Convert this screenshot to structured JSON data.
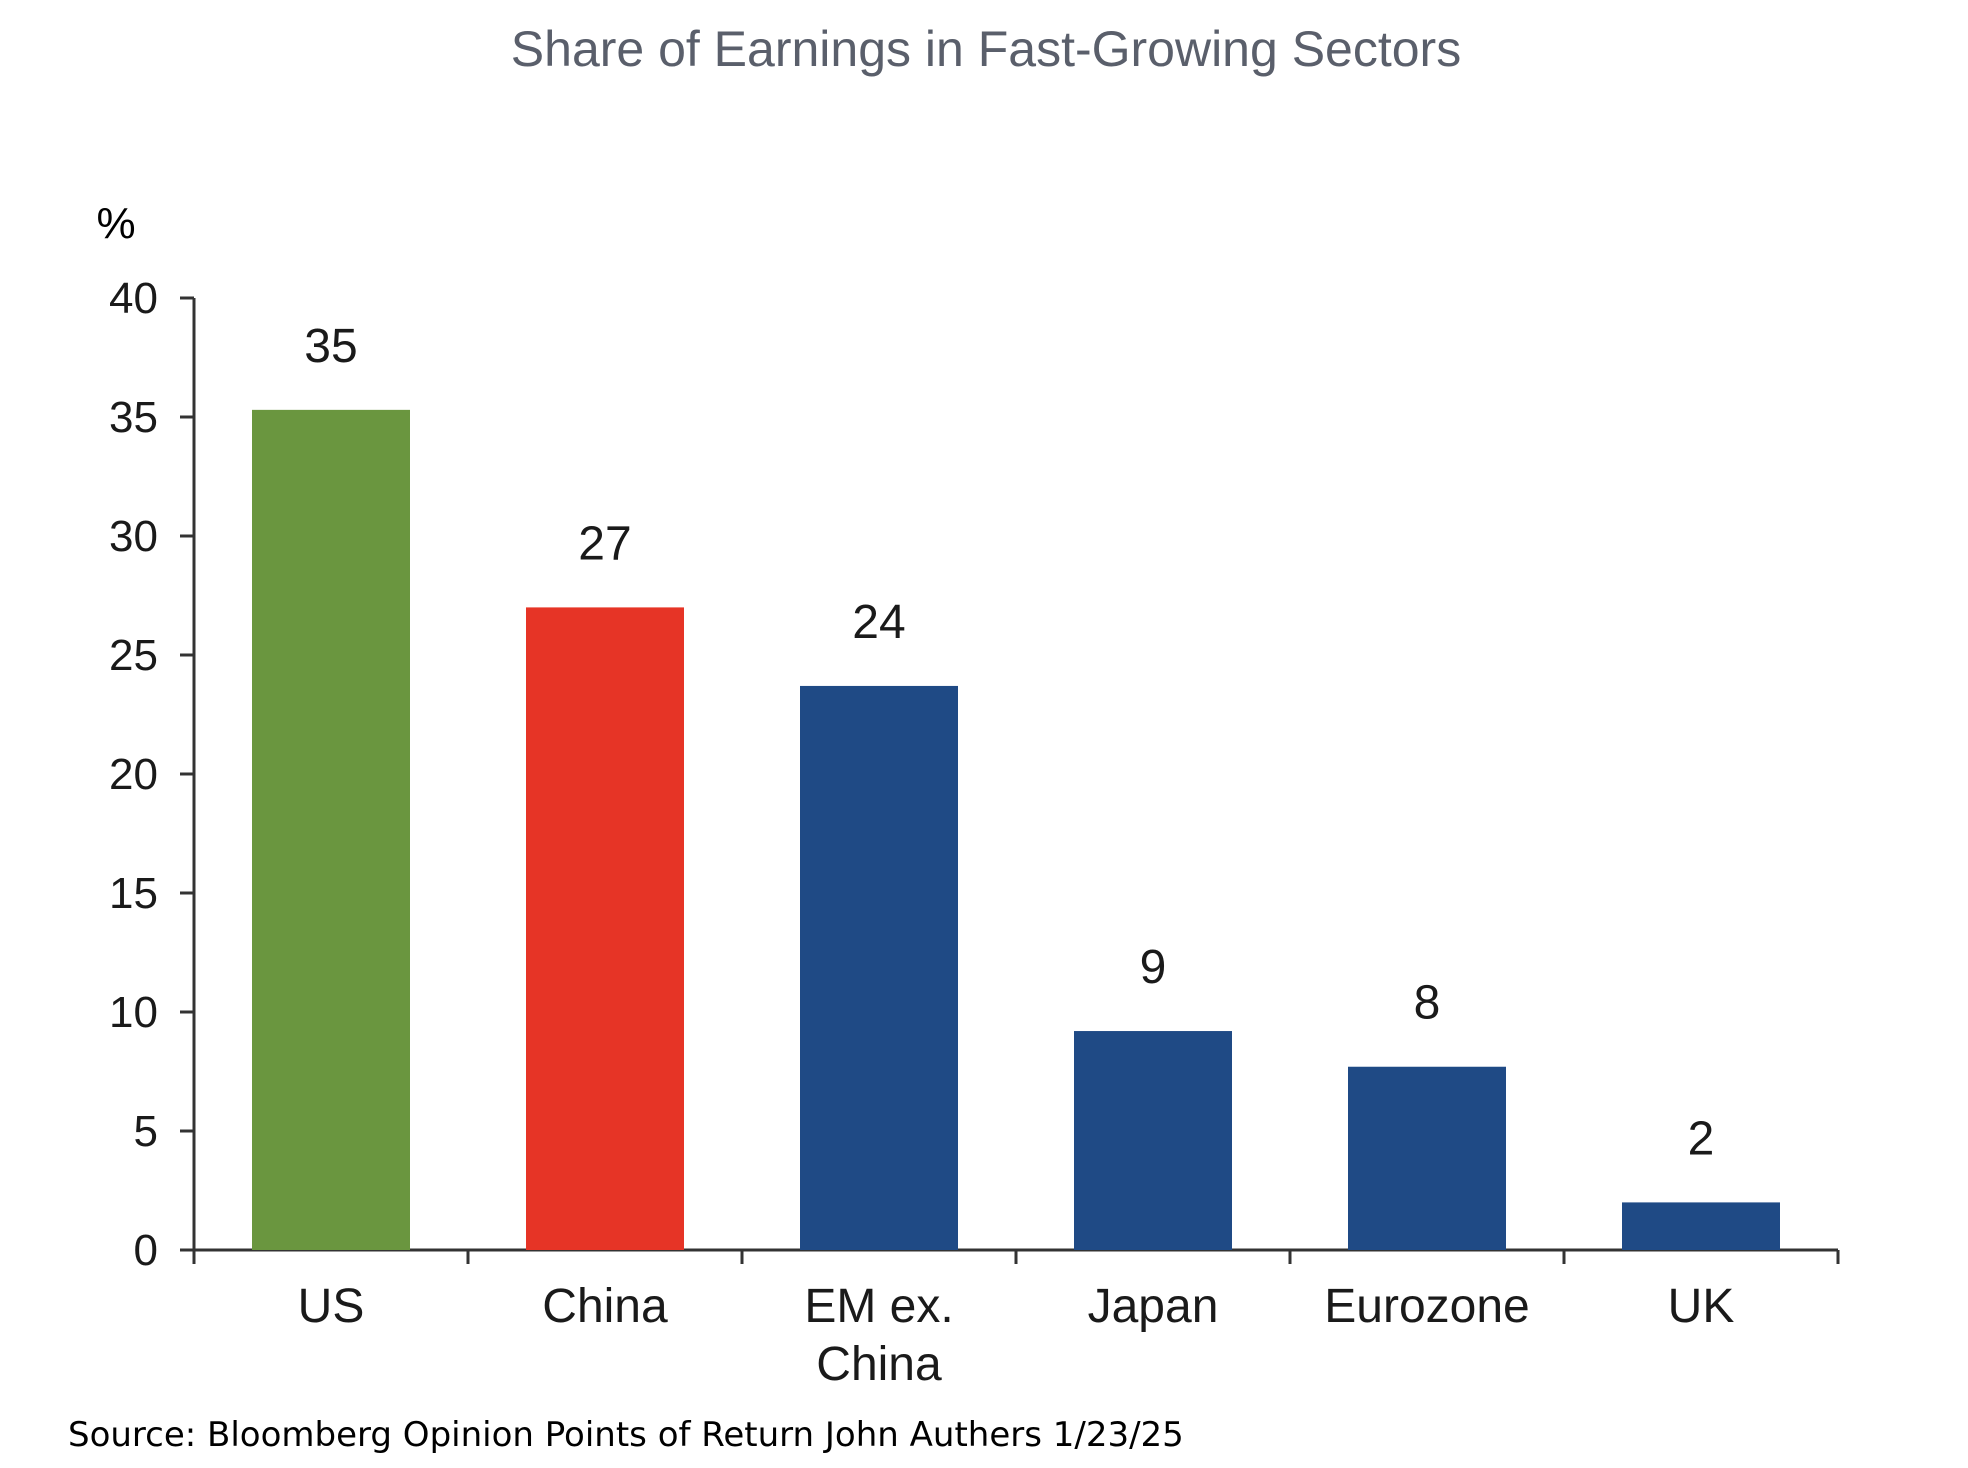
{
  "chart_data": {
    "type": "bar",
    "title": "Share of Earnings in Fast-Growing Sectors",
    "unit_label": "%",
    "xlabel": "",
    "ylabel": "",
    "ylim": [
      0,
      40
    ],
    "yticks": [
      0,
      5,
      10,
      15,
      20,
      25,
      30,
      35,
      40
    ],
    "grid": false,
    "legend": "none",
    "categories": [
      [
        "US"
      ],
      [
        "China"
      ],
      [
        "EM ex.",
        "China"
      ],
      [
        "Japan"
      ],
      [
        "Eurozone"
      ],
      [
        "UK"
      ]
    ],
    "values": [
      35,
      27,
      24,
      9,
      8,
      2
    ],
    "bar_heights": [
      35.3,
      27.0,
      23.7,
      9.2,
      7.7,
      2.0
    ],
    "data_labels": [
      "35",
      "27",
      "24",
      "9",
      "8",
      "2"
    ],
    "colors": [
      "#6a963f",
      "#e63426",
      "#1f4a85",
      "#1f4a85",
      "#1f4a85",
      "#1f4a85"
    ]
  },
  "footer": {
    "source": "Source: Bloomberg Opinion Points of Return John Authers 1/23/25"
  }
}
